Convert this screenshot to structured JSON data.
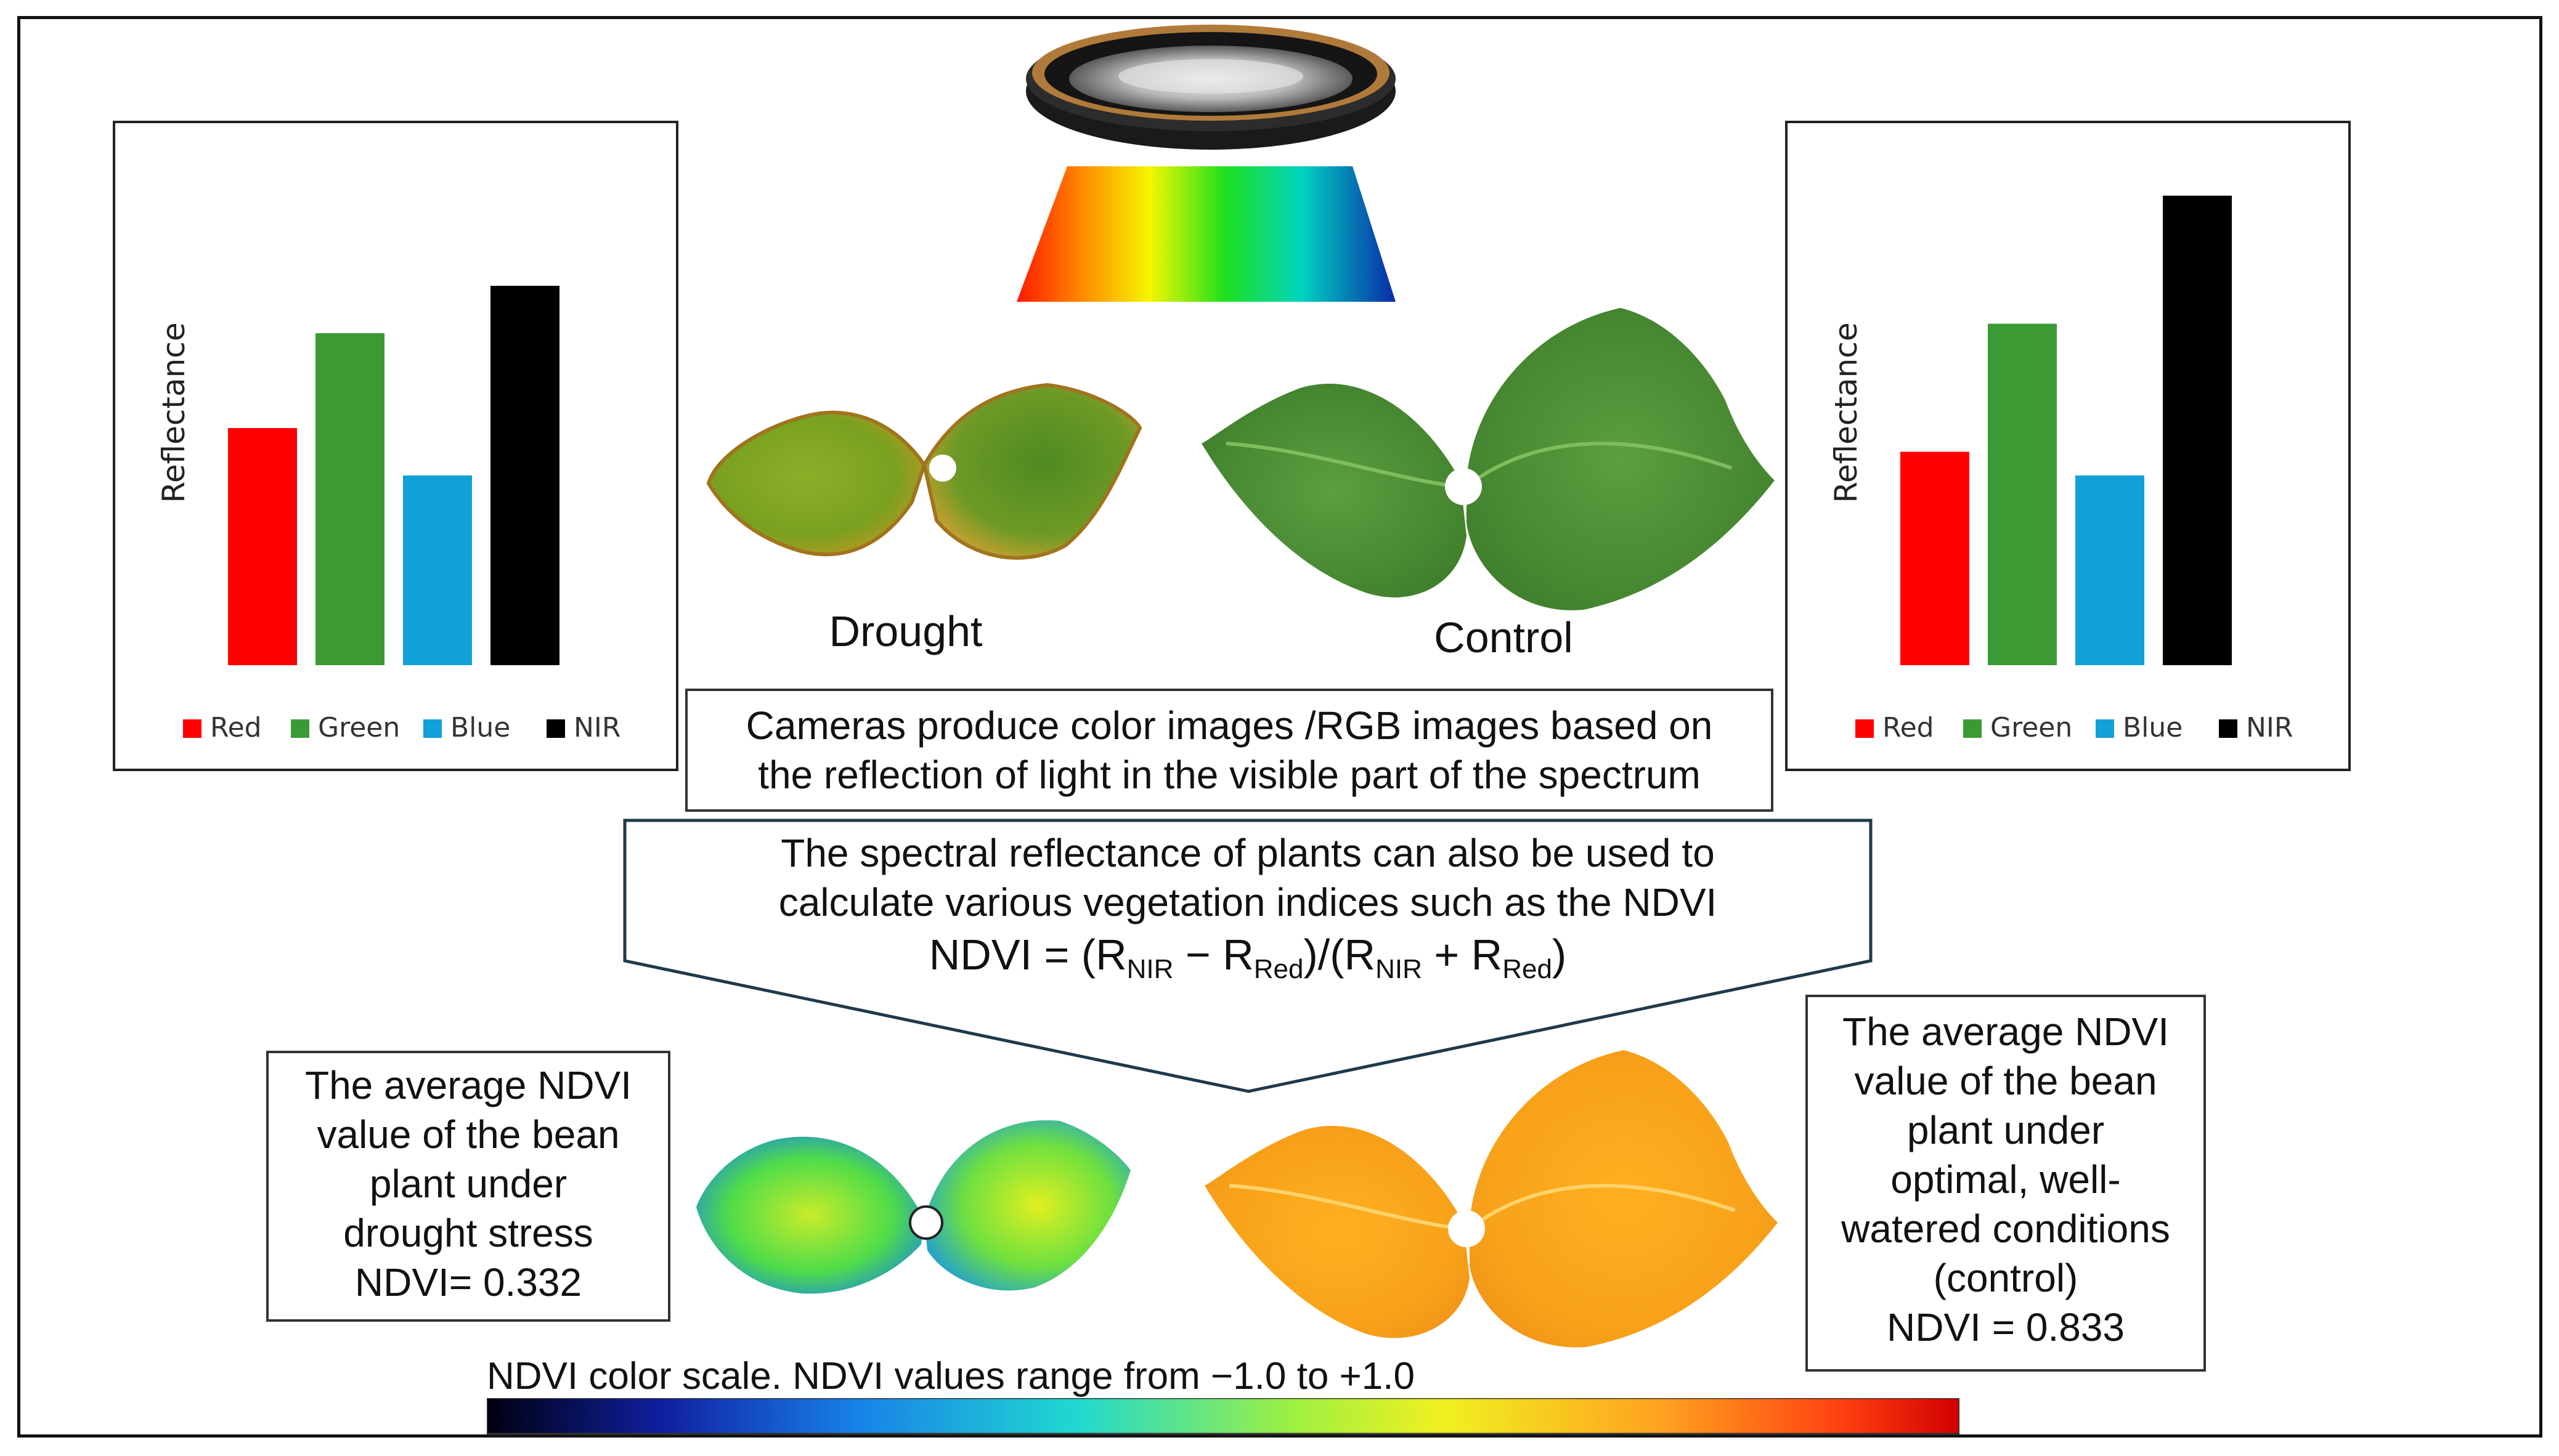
{
  "colors": {
    "red": "#ff0000",
    "green": "#3c9a35",
    "blue": "#12a0d8",
    "nir": "#000000"
  },
  "chart_data": [
    {
      "type": "bar",
      "panel": "left",
      "title": "",
      "xlabel": "",
      "ylabel": "Reflectance",
      "categories": [
        "Red",
        "Green",
        "Blue",
        "NIR"
      ],
      "values": [
        0.5,
        0.7,
        0.4,
        0.8
      ],
      "ylim": [
        0,
        1
      ],
      "legend": "bottom",
      "grid": false
    },
    {
      "type": "bar",
      "panel": "right",
      "title": "",
      "xlabel": "",
      "ylabel": "Reflectance",
      "categories": [
        "Red",
        "Green",
        "Blue",
        "NIR"
      ],
      "values": [
        0.45,
        0.72,
        0.4,
        0.99
      ],
      "ylim": [
        0,
        1
      ],
      "legend": "bottom",
      "grid": false
    }
  ],
  "labels": {
    "drought": "Drought",
    "control": "Control"
  },
  "camera_box": {
    "line1": "Cameras produce color images /RGB images based on",
    "line2": "the reflection of light in the visible part of the spectrum"
  },
  "ndvi_box": {
    "line1": "The spectral reflectance of plants can also be used to",
    "line2": "calculate various vegetation indices such as the NDVI",
    "formula_prefix": "NDVI = (R",
    "sub_nir": "NIR",
    "minus": " − R",
    "sub_red": "Red",
    "mid": ")/(R",
    "sub_nir2": "NIR",
    "plus": " + R",
    "sub_red2": "Red",
    "suffix": ")"
  },
  "drought_box": {
    "lines": [
      "The average NDVI",
      "value of the bean",
      "plant under",
      "drought stress",
      "NDVI= 0.332"
    ]
  },
  "control_box": {
    "lines": [
      "The average NDVI",
      "value of the bean",
      "plant under",
      "optimal, well-",
      "watered conditions",
      "(control)",
      "NDVI = 0.833"
    ]
  },
  "scale": {
    "caption": "NDVI color scale. NDVI values range from −1.0 to +1.0"
  }
}
